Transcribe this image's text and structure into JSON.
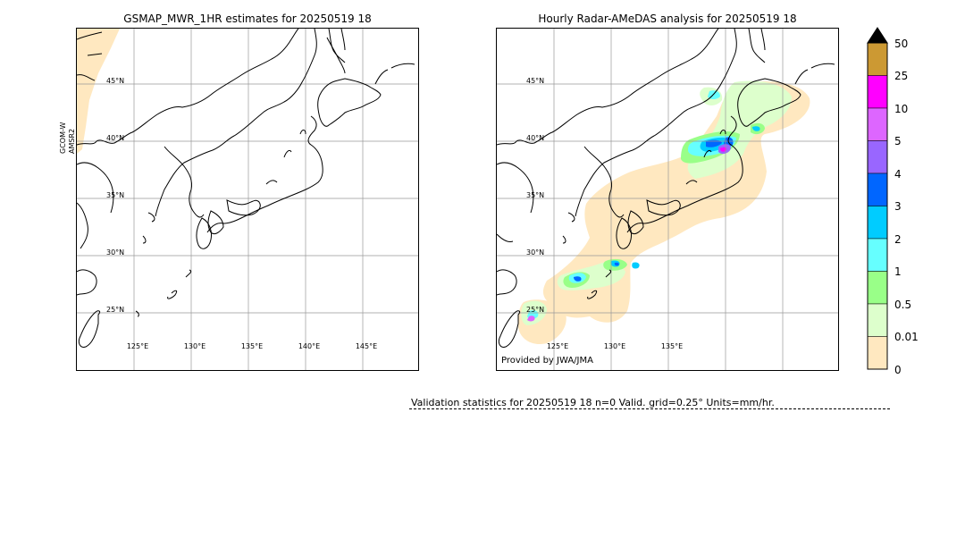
{
  "left_panel": {
    "title": "GSMAP_MWR_1HR estimates for 20250519 18",
    "side_label_1": "GCOM-W",
    "side_label_2": "AMSR2",
    "lat_labels": [
      "45°N",
      "40°N",
      "35°N",
      "30°N",
      "25°N"
    ],
    "lon_labels": [
      "125°E",
      "130°E",
      "135°E",
      "140°E",
      "145°E"
    ]
  },
  "right_panel": {
    "title": "Hourly Radar-AMeDAS analysis for 20250519 18",
    "lat_labels": [
      "45°N",
      "40°N",
      "35°N",
      "30°N",
      "25°N"
    ],
    "lon_labels": [
      "125°E",
      "130°E",
      "135°E"
    ],
    "provided": "Provided by JWA/JMA"
  },
  "colorbar": {
    "labels": [
      "50",
      "25",
      "10",
      "5",
      "4",
      "3",
      "2",
      "1",
      "0.5",
      "0.01",
      "0"
    ],
    "colors": [
      "#cc9933",
      "#ff00ff",
      "#dd66ff",
      "#9966ff",
      "#0066ff",
      "#00ccff",
      "#66ffff",
      "#99ff88",
      "#ddffcc",
      "#ffe8c0"
    ],
    "extend_color": "#000000"
  },
  "validation": {
    "text": "Validation statistics for 20250519 18  n=0 Valid. grid=0.25° Units=mm/hr."
  }
}
